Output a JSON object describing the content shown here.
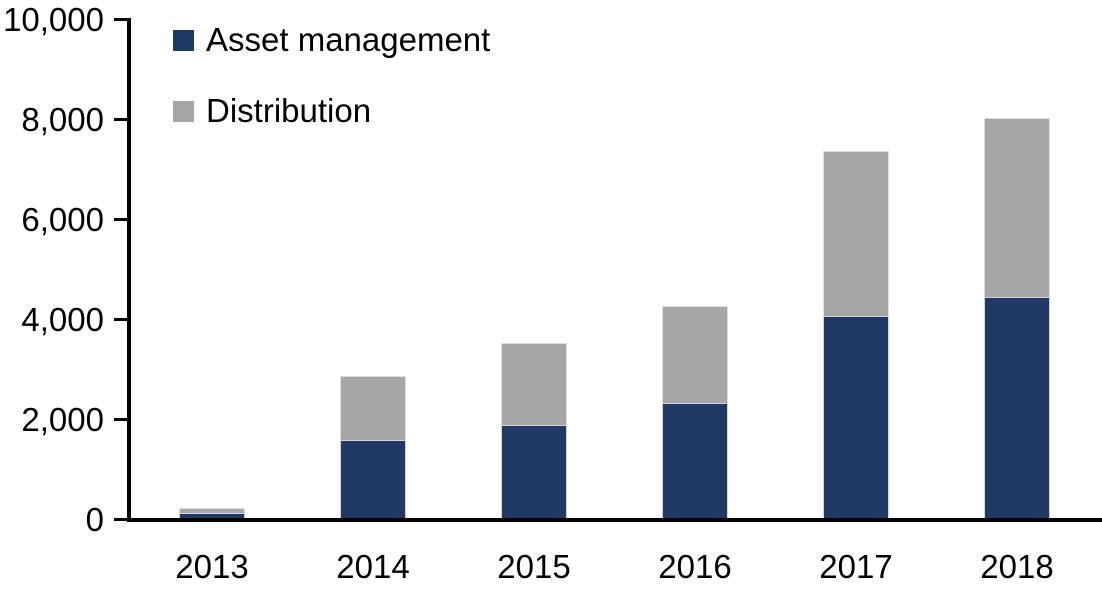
{
  "chart_data": {
    "type": "bar",
    "stacked": true,
    "title": "",
    "xlabel": "",
    "ylabel": "",
    "categories": [
      "2013",
      "2014",
      "2015",
      "2016",
      "2017",
      "2018"
    ],
    "series": [
      {
        "name": "Asset management",
        "color": "#1F3864",
        "values": [
          100,
          1560,
          1860,
          2300,
          4040,
          4420
        ]
      },
      {
        "name": "Distribution",
        "color": "#A6A6A6",
        "values": [
          110,
          1290,
          1640,
          1950,
          3310,
          3580
        ]
      }
    ],
    "totals": [
      210,
      2850,
      3500,
      4250,
      7350,
      8000
    ],
    "ylim": [
      0,
      10000
    ],
    "yticks": [
      0,
      2000,
      4000,
      6000,
      8000,
      10000
    ],
    "ytick_labels": [
      "0",
      "2,000",
      "4,000",
      "6,000",
      "8,000",
      "10,000"
    ],
    "grid": false,
    "legend_position": "top-left-inside"
  },
  "legend": {
    "items": [
      {
        "label": "Asset management",
        "color": "#1F3864"
      },
      {
        "label": "Distribution",
        "color": "#A6A6A6"
      }
    ]
  },
  "colors": {
    "axis": "#000000",
    "background": "#FFFFFF",
    "text": "#000000"
  }
}
